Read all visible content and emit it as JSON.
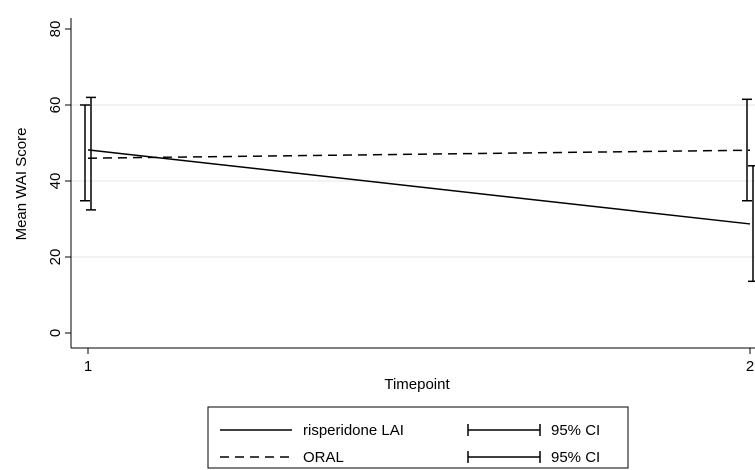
{
  "chart_data": {
    "type": "line",
    "xlabel": "Timepoint",
    "ylabel": "Mean WAI Score",
    "x": [
      1,
      2
    ],
    "xticks": [
      "1",
      "2"
    ],
    "yticks": [
      "0",
      "20",
      "40",
      "60",
      "80"
    ],
    "ylim": [
      0,
      80
    ],
    "grid": "horizontal",
    "legend_position": "bottom",
    "series": [
      {
        "name": "risperidone LAI",
        "line_style": "solid",
        "values": [
          48.2,
          28.7
        ],
        "ci_lower": [
          34.8,
          13.6
        ],
        "ci_upper": [
          60.0,
          44.0
        ],
        "ci_label": "95% CI"
      },
      {
        "name": "ORAL",
        "line_style": "dashed",
        "values": [
          46.0,
          48.1
        ],
        "ci_lower": [
          32.4,
          34.8
        ],
        "ci_upper": [
          62.0,
          61.5
        ],
        "ci_label": "95% CI"
      }
    ]
  }
}
